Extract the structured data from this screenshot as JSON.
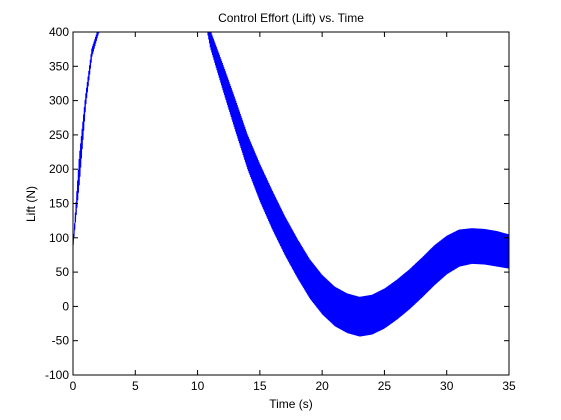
{
  "chart_data": {
    "type": "line",
    "title": "Control Effort (Lift) vs. Time",
    "xlabel": "Time (s)",
    "ylabel": "Lift (N)",
    "xlim": [
      0,
      35
    ],
    "ylim": [
      -100,
      400
    ],
    "xticks": [
      0,
      5,
      10,
      15,
      20,
      25,
      30,
      35
    ],
    "yticks": [
      -100,
      -50,
      0,
      50,
      100,
      150,
      200,
      250,
      300,
      350,
      400
    ],
    "grid": false,
    "line_color": "#0000ff",
    "series": [
      {
        "x": [
          0,
          0.5,
          1,
          1.5,
          2,
          2.2,
          10.7,
          11,
          12,
          13,
          14,
          15,
          16,
          17,
          18,
          19,
          20,
          21,
          22,
          23,
          24,
          25,
          26,
          27,
          28,
          29,
          30,
          31,
          32,
          33,
          34,
          35
        ],
        "y_center": [
          90,
          200,
          300,
          370,
          400,
          410,
          410,
          390,
          335,
          280,
          225,
          180,
          140,
          103,
          70,
          40,
          17,
          0,
          -10,
          -15,
          -12,
          -3,
          10,
          25,
          42,
          60,
          75,
          85,
          88,
          87,
          84,
          80
        ],
        "y_amplitude": [
          0,
          20,
          8,
          6,
          4,
          4,
          6,
          14,
          20,
          24,
          26,
          28,
          29,
          29,
          29,
          29,
          29,
          29,
          29,
          29,
          29,
          29,
          29,
          29,
          29,
          29,
          28,
          27,
          26,
          26,
          26,
          25
        ]
      }
    ]
  }
}
